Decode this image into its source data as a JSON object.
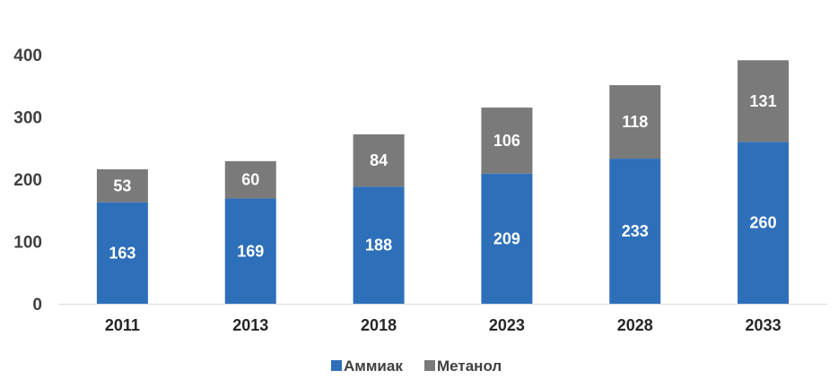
{
  "chart_data": {
    "type": "bar",
    "stacked": true,
    "title": "",
    "xlabel": "",
    "ylabel": "",
    "categories": [
      "2011",
      "2013",
      "2018",
      "2023",
      "2028",
      "2033"
    ],
    "series": [
      {
        "name": "Аммиак",
        "color": "#2E6FBA",
        "values": [
          163,
          169,
          188,
          209,
          233,
          260
        ]
      },
      {
        "name": "Метанол",
        "color": "#7A7A7A",
        "values": [
          53,
          60,
          84,
          106,
          118,
          131
        ]
      }
    ],
    "ylim": [
      0,
      400
    ],
    "yticks": [
      0,
      100,
      200,
      300,
      400
    ],
    "grid": false,
    "legend_position": "bottom",
    "data_labels": true
  }
}
